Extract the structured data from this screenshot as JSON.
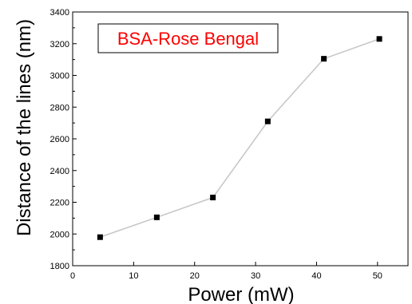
{
  "chart_data": {
    "type": "line",
    "title": "",
    "xlabel": "Power (mW)",
    "ylabel": "Distance of the lines (nm)",
    "xlim": [
      0,
      55
    ],
    "ylim": [
      1800,
      3400
    ],
    "xticks": [
      "0",
      "10",
      "20",
      "30",
      "40",
      "50"
    ],
    "yticks": [
      "1800",
      "2000",
      "2200",
      "2400",
      "2600",
      "2800",
      "3000",
      "3200",
      "3400"
    ],
    "grid": false,
    "legend_position": "top-left",
    "series": [
      {
        "name": "BSA-Rose Bengal",
        "x": [
          4.5,
          13.8,
          23,
          32,
          41.2,
          50.3
        ],
        "y": [
          1980,
          2105,
          2230,
          2710,
          3105,
          3230
        ],
        "color": "#c8c8c8",
        "marker_color": "#000000",
        "label_color": "#ff0000"
      }
    ]
  }
}
